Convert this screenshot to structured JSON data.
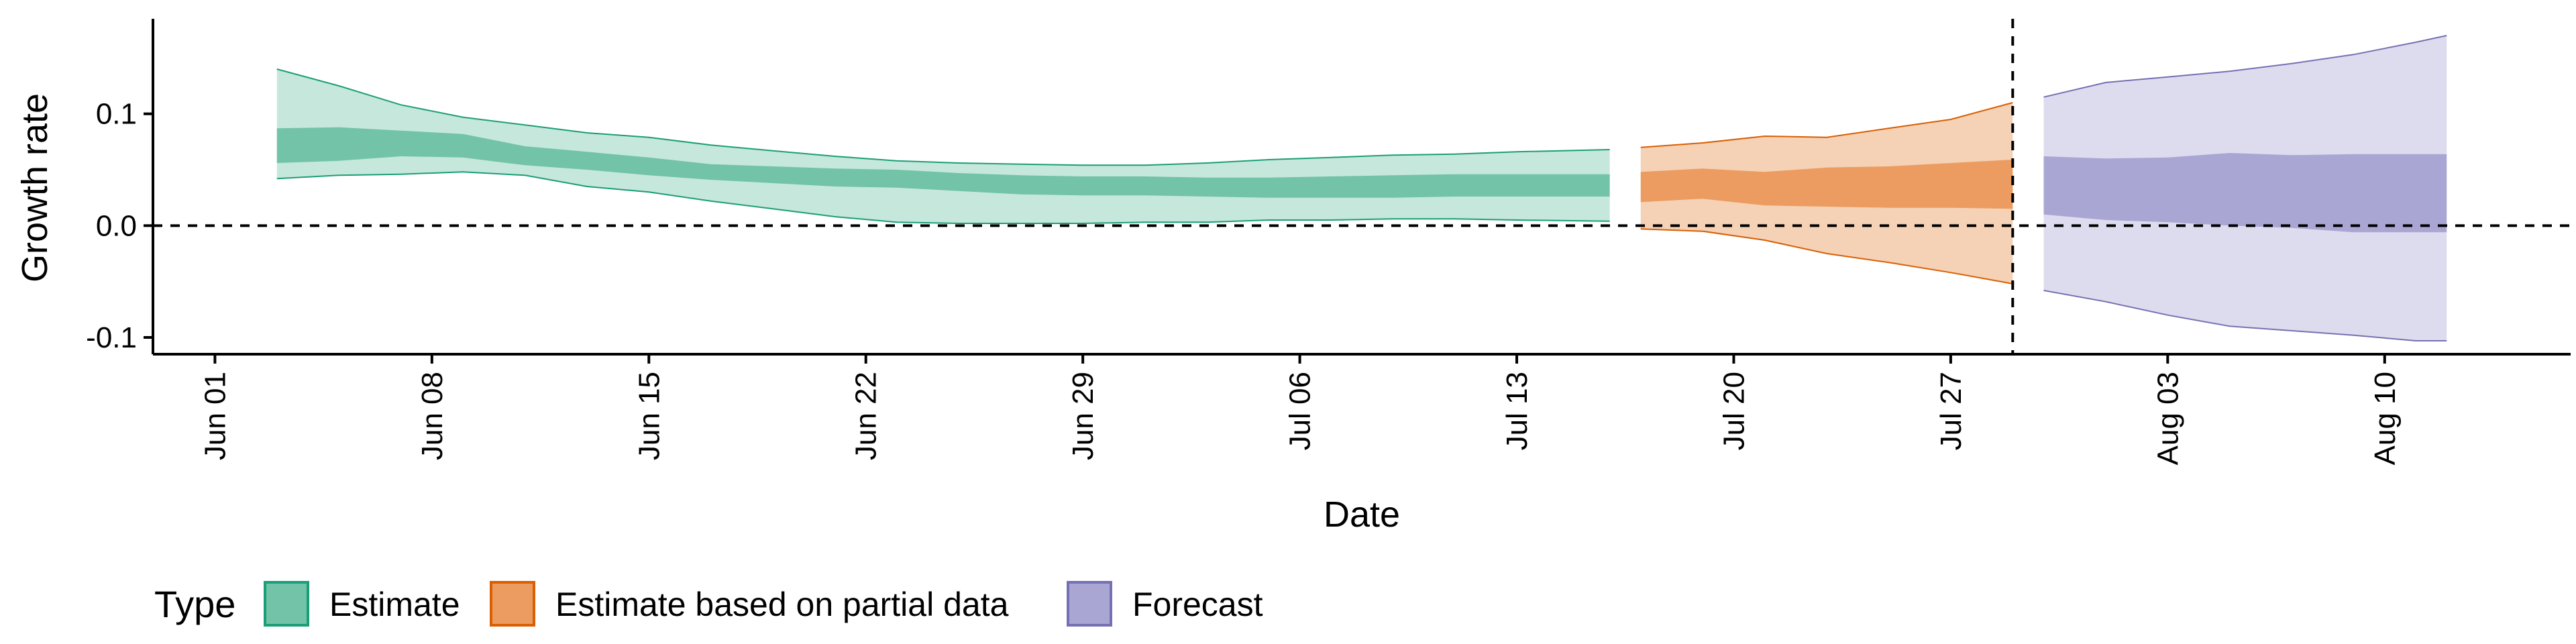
{
  "chart_data": {
    "type": "area",
    "xlabel": "Date",
    "ylabel": "Growth rate",
    "x_ticks": [
      {
        "date": "2020-06-01",
        "label": "Jun 01"
      },
      {
        "date": "2020-06-08",
        "label": "Jun 08"
      },
      {
        "date": "2020-06-15",
        "label": "Jun 15"
      },
      {
        "date": "2020-06-22",
        "label": "Jun 22"
      },
      {
        "date": "2020-06-29",
        "label": "Jun 29"
      },
      {
        "date": "2020-07-06",
        "label": "Jul 06"
      },
      {
        "date": "2020-07-13",
        "label": "Jul 13"
      },
      {
        "date": "2020-07-20",
        "label": "Jul 20"
      },
      {
        "date": "2020-07-27",
        "label": "Jul 27"
      },
      {
        "date": "2020-08-03",
        "label": "Aug 03"
      },
      {
        "date": "2020-08-10",
        "label": "Aug 10"
      }
    ],
    "y_ticks": [
      {
        "value": 0.1,
        "label": "0.1"
      },
      {
        "value": 0.0,
        "label": "0.0"
      },
      {
        "value": -0.1,
        "label": "-0.1"
      }
    ],
    "xlim": [
      "2020-05-30",
      "2020-08-16"
    ],
    "ylim": [
      -0.115,
      0.185
    ],
    "grid": false,
    "reference_lines": [
      {
        "axis": "y",
        "value": 0.0,
        "style": "dashed"
      },
      {
        "axis": "x",
        "value": "2020-07-29",
        "style": "dashed"
      }
    ],
    "legend": {
      "title": "Type",
      "position": "bottom-left",
      "entries": [
        {
          "label": "Estimate",
          "fill": "#72c3a8",
          "stroke": "#1b9e77"
        },
        {
          "label": "Estimate based on partial data",
          "fill": "#ec9c60",
          "stroke": "#d95f02"
        },
        {
          "label": "Forecast",
          "fill": "#aaa6d3",
          "stroke": "#7570b3"
        }
      ]
    },
    "series": [
      {
        "name": "Estimate",
        "outer_fill": "#c5e7dc",
        "inner_fill": "#72c3a8",
        "stroke": "#1b9e77",
        "x": [
          "2020-06-03",
          "2020-06-05",
          "2020-06-07",
          "2020-06-09",
          "2020-06-11",
          "2020-06-13",
          "2020-06-15",
          "2020-06-17",
          "2020-06-19",
          "2020-06-21",
          "2020-06-23",
          "2020-06-25",
          "2020-06-27",
          "2020-06-29",
          "2020-07-01",
          "2020-07-03",
          "2020-07-05",
          "2020-07-07",
          "2020-07-09",
          "2020-07-11",
          "2020-07-13",
          "2020-07-16"
        ],
        "upper90": [
          0.14,
          0.125,
          0.108,
          0.097,
          0.09,
          0.083,
          0.079,
          0.072,
          0.067,
          0.062,
          0.058,
          0.056,
          0.055,
          0.054,
          0.054,
          0.056,
          0.059,
          0.061,
          0.063,
          0.064,
          0.066,
          0.068
        ],
        "upper50": [
          0.087,
          0.088,
          0.085,
          0.082,
          0.071,
          0.066,
          0.061,
          0.055,
          0.053,
          0.051,
          0.05,
          0.047,
          0.045,
          0.044,
          0.044,
          0.043,
          0.043,
          0.044,
          0.045,
          0.046,
          0.046,
          0.046
        ],
        "lower50": [
          0.056,
          0.058,
          0.062,
          0.061,
          0.054,
          0.05,
          0.045,
          0.041,
          0.038,
          0.035,
          0.034,
          0.031,
          0.028,
          0.027,
          0.027,
          0.026,
          0.025,
          0.025,
          0.025,
          0.026,
          0.026,
          0.026
        ],
        "lower90": [
          0.042,
          0.045,
          0.046,
          0.048,
          0.045,
          0.035,
          0.03,
          0.022,
          0.015,
          0.008,
          0.003,
          0.002,
          0.002,
          0.002,
          0.003,
          0.003,
          0.005,
          0.005,
          0.006,
          0.006,
          0.005,
          0.004
        ]
      },
      {
        "name": "Estimate based on partial data",
        "outer_fill": "#f5d1b6",
        "inner_fill": "#ec9c60",
        "stroke": "#d95f02",
        "x": [
          "2020-07-17",
          "2020-07-19",
          "2020-07-21",
          "2020-07-23",
          "2020-07-25",
          "2020-07-27",
          "2020-07-29"
        ],
        "upper90": [
          0.07,
          0.074,
          0.08,
          0.079,
          0.087,
          0.095,
          0.11
        ],
        "upper50": [
          0.048,
          0.051,
          0.048,
          0.052,
          0.053,
          0.056,
          0.059
        ],
        "lower50": [
          0.021,
          0.024,
          0.018,
          0.017,
          0.016,
          0.016,
          0.015
        ],
        "lower90": [
          -0.003,
          -0.005,
          -0.013,
          -0.025,
          -0.033,
          -0.042,
          -0.052
        ]
      },
      {
        "name": "Forecast",
        "outer_fill": "#dddcee",
        "inner_fill": "#aaa6d3",
        "stroke": "#7570b3",
        "x": [
          "2020-07-30",
          "2020-08-01",
          "2020-08-03",
          "2020-08-05",
          "2020-08-07",
          "2020-08-09",
          "2020-08-11",
          "2020-08-12"
        ],
        "upper90": [
          0.115,
          0.128,
          0.133,
          0.138,
          0.145,
          0.153,
          0.164,
          0.17
        ],
        "upper50": [
          0.062,
          0.06,
          0.061,
          0.065,
          0.063,
          0.064,
          0.064,
          0.064
        ],
        "lower50": [
          0.01,
          0.005,
          0.003,
          0.0,
          -0.002,
          -0.006,
          -0.006,
          -0.006
        ],
        "lower90": [
          -0.058,
          -0.068,
          -0.08,
          -0.09,
          -0.094,
          -0.098,
          -0.103,
          -0.103
        ]
      }
    ]
  }
}
